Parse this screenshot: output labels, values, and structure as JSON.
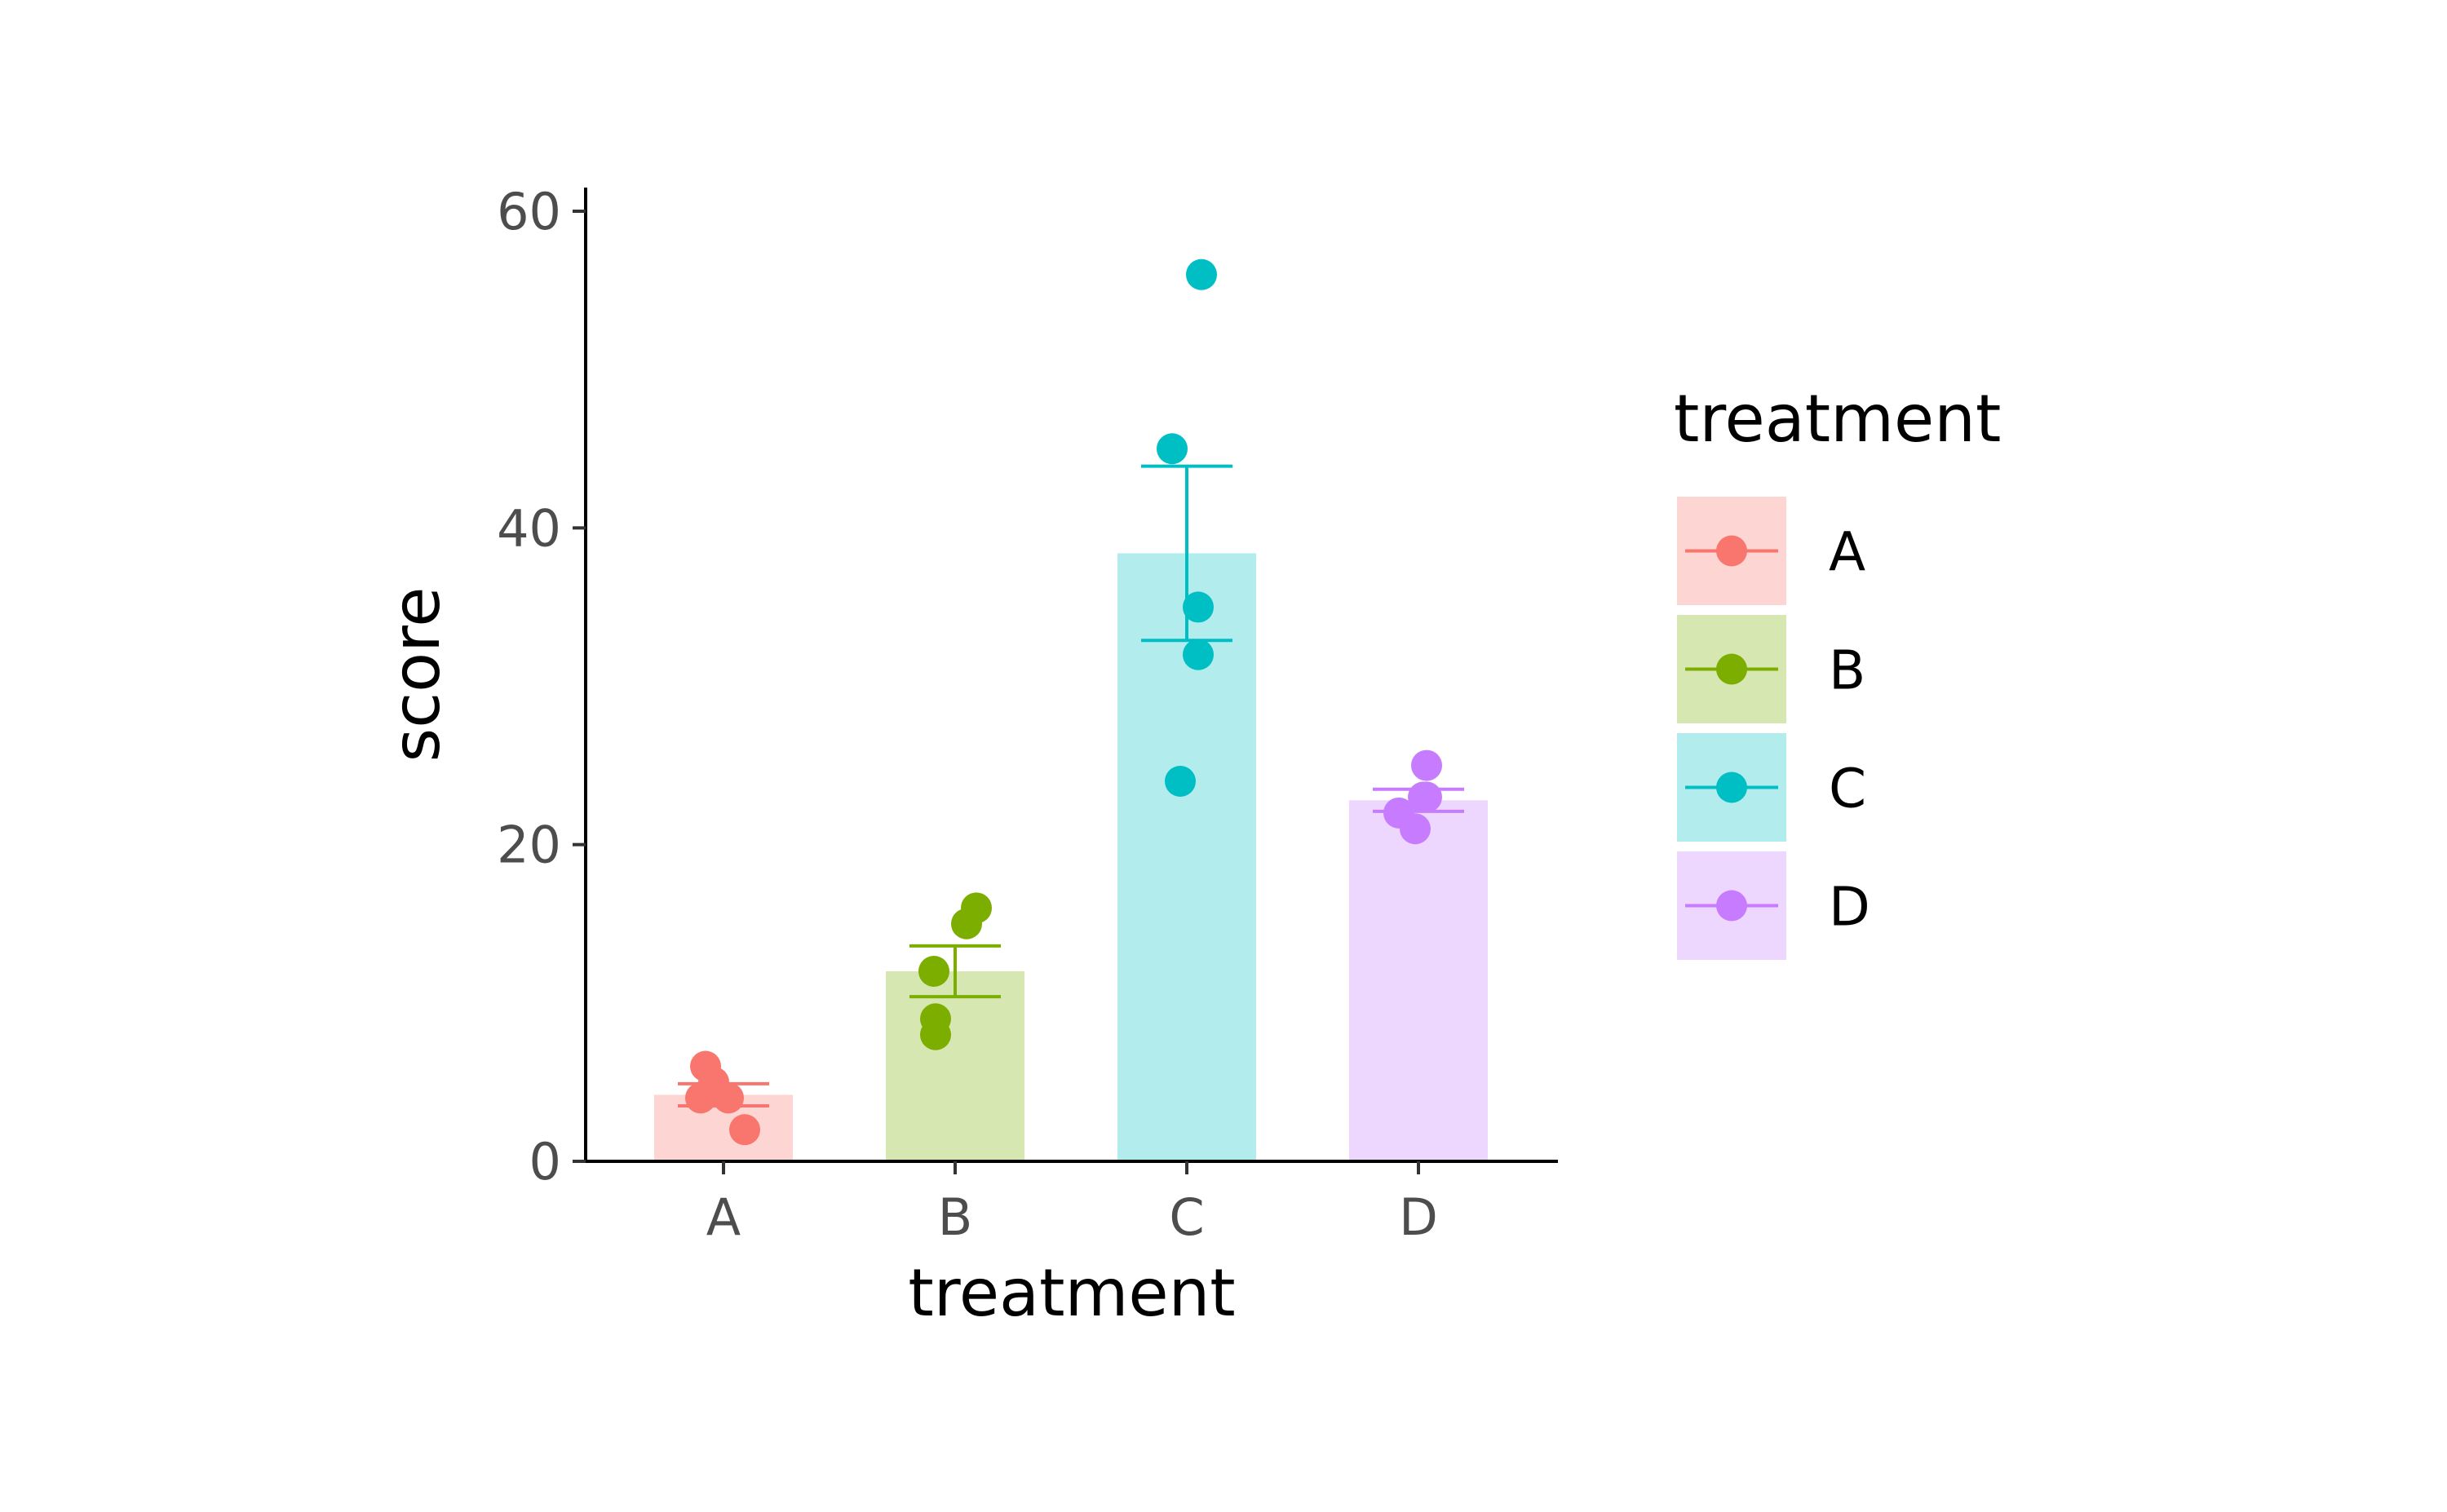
{
  "chart_data": {
    "type": "bar",
    "title": "",
    "xlabel": "treatment",
    "ylabel": "score",
    "ylim": [
      0,
      62
    ],
    "yticks": [
      0,
      20,
      40,
      60
    ],
    "categories": [
      "A",
      "B",
      "C",
      "D"
    ],
    "means": [
      4.2,
      12.0,
      38.4,
      22.8
    ],
    "error_low": [
      3.5,
      10.4,
      32.9,
      22.1
    ],
    "error_high": [
      4.9,
      13.6,
      43.9,
      23.5
    ],
    "points": [
      [
        6,
        5,
        4,
        4,
        2
      ],
      [
        16,
        15,
        12,
        9,
        8
      ],
      [
        56,
        45,
        35,
        32,
        24
      ],
      [
        25,
        23,
        23,
        22,
        21
      ]
    ],
    "colors": [
      "#F8766D",
      "#7CAE00",
      "#00BFC4",
      "#C77CFF"
    ],
    "legend": {
      "title": "treatment",
      "entries": [
        "A",
        "B",
        "C",
        "D"
      ],
      "position": "right"
    },
    "grid": false
  }
}
